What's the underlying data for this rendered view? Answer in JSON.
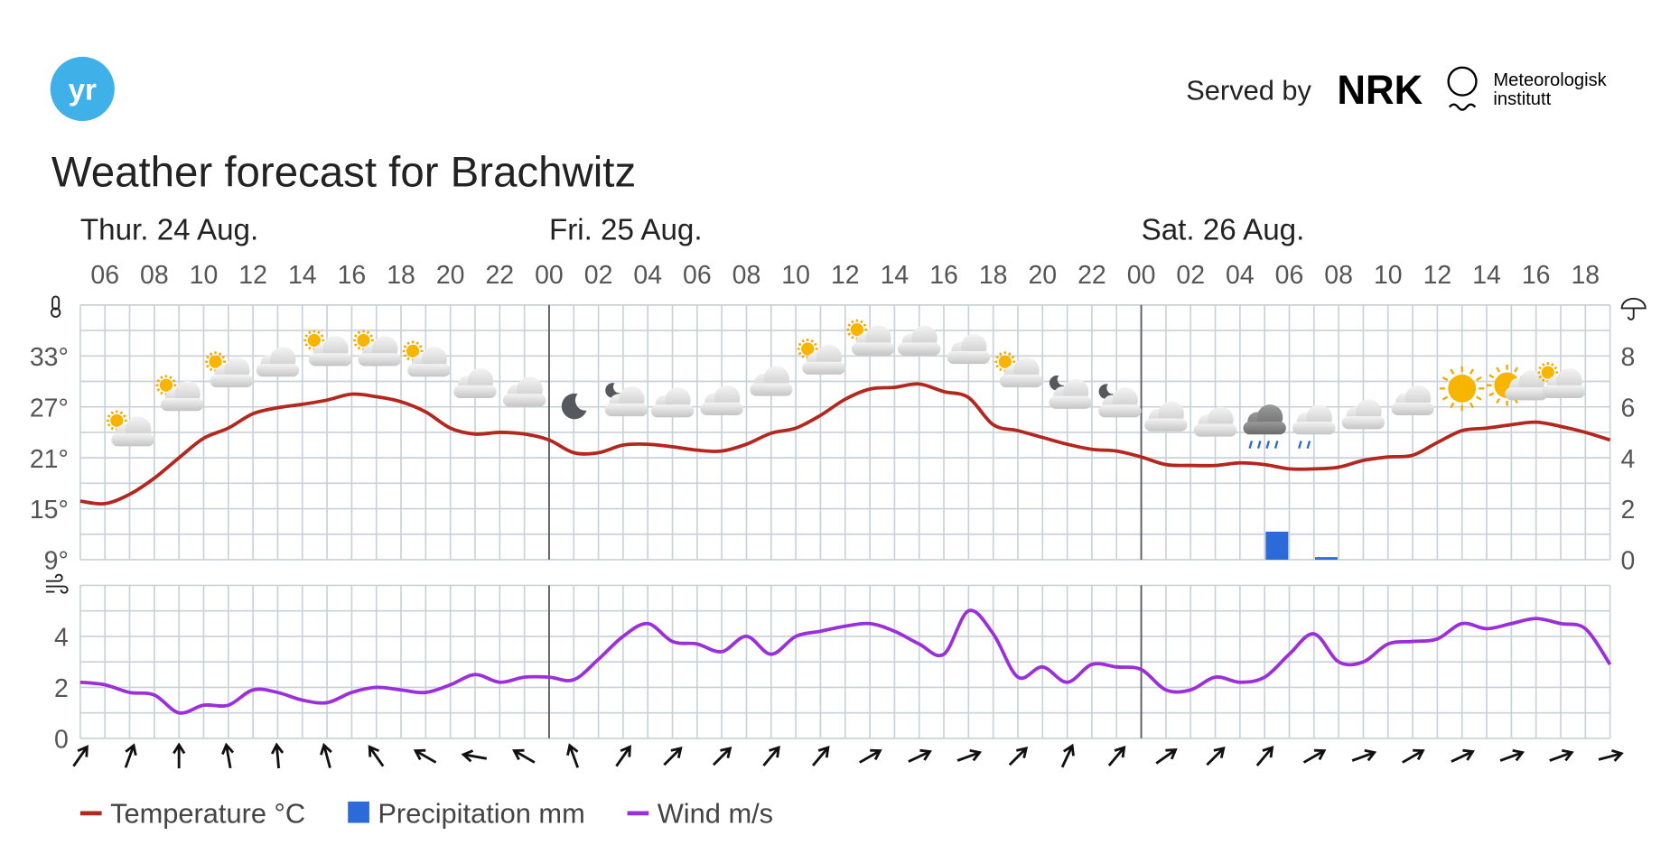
{
  "header": {
    "logo": "yr",
    "served_by": "Served by",
    "partner": "NRK",
    "institute": [
      "Meteorologisk",
      "institutt"
    ],
    "title": "Weather forecast for Brachwitz"
  },
  "chart_data": [
    {
      "type": "line",
      "day_labels": [
        "Thur. 24 Aug.",
        "Fri. 25 Aug.",
        "Sat. 26 Aug."
      ],
      "day_lines": [
        24,
        48
      ],
      "x": [
        5,
        6,
        7,
        8,
        9,
        10,
        11,
        12,
        13,
        14,
        15,
        16,
        17,
        18,
        19,
        20,
        21,
        22,
        23,
        24,
        25,
        26,
        27,
        28,
        29,
        30,
        31,
        32,
        33,
        34,
        35,
        36,
        37,
        38,
        39,
        40,
        41,
        42,
        43,
        44,
        45,
        46,
        47,
        48,
        49,
        50,
        51,
        52,
        53,
        54,
        55,
        56,
        57,
        58,
        59,
        60,
        61,
        62,
        63,
        64,
        65,
        66,
        67
      ],
      "xlim": [
        5,
        67
      ],
      "xticks": [
        {
          "value": 6,
          "label": "06"
        },
        {
          "value": 8,
          "label": "08"
        },
        10,
        12,
        14,
        16,
        18,
        20,
        22,
        {
          "value": 24,
          "label": "00"
        },
        {
          "value": 26,
          "label": "02"
        },
        {
          "value": 28,
          "label": "04"
        },
        {
          "value": 30,
          "label": "06"
        },
        {
          "value": 32,
          "label": "08"
        },
        {
          "value": 34,
          "label": "10"
        },
        {
          "value": 36,
          "label": "12"
        },
        {
          "value": 38,
          "label": "14"
        },
        {
          "value": 40,
          "label": "16"
        },
        {
          "value": 42,
          "label": "18"
        },
        {
          "value": 44,
          "label": "20"
        },
        {
          "value": 46,
          "label": "22"
        },
        {
          "value": 48,
          "label": "00"
        },
        {
          "value": 50,
          "label": "02"
        },
        {
          "value": 52,
          "label": "04"
        },
        {
          "value": 54,
          "label": "06"
        },
        {
          "value": 56,
          "label": "08"
        },
        {
          "value": 58,
          "label": "10"
        },
        {
          "value": 60,
          "label": "12"
        },
        {
          "value": 62,
          "label": "14"
        },
        {
          "value": 64,
          "label": "16"
        },
        {
          "value": 66,
          "label": "18"
        }
      ],
      "ylim": [
        9,
        39
      ],
      "yticks": [
        {
          "value": 9,
          "label": "9°"
        },
        {
          "value": 15,
          "label": "15°"
        },
        {
          "value": 21,
          "label": "21°"
        },
        {
          "value": 27,
          "label": "27°"
        },
        {
          "value": 33,
          "label": "33°"
        }
      ],
      "y2lim": [
        0,
        10
      ],
      "y2ticks": [
        0,
        2,
        4,
        6,
        8
      ],
      "grid": true,
      "series": [
        {
          "name": "Temperature °C",
          "color": "#b3271f",
          "values": [
            15.9,
            15.6,
            16.7,
            18.6,
            21,
            23.3,
            24.5,
            26.2,
            26.9,
            27.3,
            27.8,
            28.5,
            28.2,
            27.6,
            26.4,
            24.5,
            23.8,
            24,
            23.8,
            23.1,
            21.6,
            21.6,
            22.5,
            22.6,
            22.3,
            21.9,
            21.8,
            22.6,
            23.9,
            24.5,
            26,
            27.9,
            29.1,
            29.3,
            29.7,
            28.8,
            28.1,
            24.9,
            24.2,
            23.4,
            22.6,
            22,
            21.8,
            21.1,
            20.2,
            20.1,
            20.1,
            20.4,
            20.2,
            19.7,
            19.7,
            19.9,
            20.7,
            21.1,
            21.3,
            22.8,
            24.2,
            24.5,
            24.9,
            25.2,
            24.7,
            24,
            23.1
          ]
        },
        {
          "name": "Precipitation mm",
          "color": "#2b6ad8",
          "type": "bar",
          "axis": "y2",
          "x": [
            53,
            55
          ],
          "values": [
            1.1,
            0.1
          ]
        }
      ]
    },
    {
      "type": "line",
      "x": [
        5,
        6,
        7,
        8,
        9,
        10,
        11,
        12,
        13,
        14,
        15,
        16,
        17,
        18,
        19,
        20,
        21,
        22,
        23,
        24,
        25,
        26,
        27,
        28,
        29,
        30,
        31,
        32,
        33,
        34,
        35,
        36,
        37,
        38,
        39,
        40,
        41,
        42,
        43,
        44,
        45,
        46,
        47,
        48,
        49,
        50,
        51,
        52,
        53,
        54,
        55,
        56,
        57,
        58,
        59,
        60,
        61,
        62,
        63,
        64,
        65,
        66,
        67
      ],
      "xlim": [
        5,
        67
      ],
      "ylim": [
        0,
        6
      ],
      "yticks": [
        0,
        2,
        4
      ],
      "grid": true,
      "series": [
        {
          "name": "Wind m/s",
          "color": "#9b2fd9",
          "values": [
            2.2,
            2.1,
            1.8,
            1.7,
            1,
            1.3,
            1.3,
            1.9,
            1.8,
            1.5,
            1.4,
            1.8,
            2,
            1.9,
            1.8,
            2.1,
            2.5,
            2.2,
            2.4,
            2.4,
            2.3,
            3.1,
            4,
            4.5,
            3.8,
            3.7,
            3.4,
            4,
            3.3,
            4,
            4.2,
            4.4,
            4.5,
            4.2,
            3.7,
            3.3,
            5,
            4.1,
            2.4,
            2.8,
            2.2,
            2.9,
            2.8,
            2.7,
            1.9,
            1.9,
            2.4,
            2.2,
            2.4,
            3.3,
            4.1,
            3,
            3,
            3.7,
            3.8,
            3.9,
            4.5,
            4.3,
            4.5,
            4.7,
            4.5,
            4.3,
            2.9
          ]
        }
      ],
      "wind_direction": {
        "x": [
          5,
          7,
          9,
          11,
          13,
          15,
          17,
          19,
          21,
          23,
          25,
          27,
          29,
          31,
          33,
          35,
          37,
          39,
          41,
          43,
          45,
          47,
          49,
          51,
          53,
          55,
          57,
          59,
          61,
          63,
          65,
          67
        ],
        "values": [
          35,
          20,
          0,
          350,
          355,
          345,
          325,
          300,
          280,
          300,
          340,
          35,
          45,
          45,
          40,
          40,
          60,
          65,
          70,
          45,
          25,
          40,
          55,
          45,
          40,
          60,
          70,
          60,
          65,
          70,
          70,
          75
        ]
      }
    }
  ]
}
